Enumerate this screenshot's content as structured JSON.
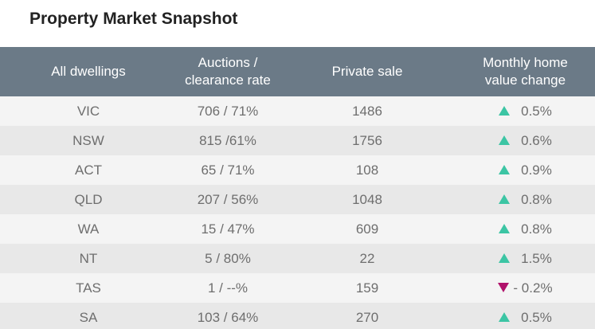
{
  "title": "Property Market Snapshot",
  "colors": {
    "header_bg": "#6b7a87",
    "up_arrow": "#3cc5a4",
    "down_arrow": "#b0126b"
  },
  "headers": {
    "col1": "All dwellings",
    "col2_line1": "Auctions /",
    "col2_line2": "clearance rate",
    "col3": "Private sale",
    "col4_line1": "Monthly home",
    "col4_line2": "value change"
  },
  "rows": [
    {
      "state": "VIC",
      "auctions": "706 / 71%",
      "private_sale": "1486",
      "direction": "up",
      "change": "0.5%"
    },
    {
      "state": "NSW",
      "auctions": "815 /61%",
      "private_sale": "1756",
      "direction": "up",
      "change": "0.6%"
    },
    {
      "state": "ACT",
      "auctions": "65 / 71%",
      "private_sale": "108",
      "direction": "up",
      "change": "0.9%"
    },
    {
      "state": "QLD",
      "auctions": "207 / 56%",
      "private_sale": "1048",
      "direction": "up",
      "change": "0.8%"
    },
    {
      "state": "WA",
      "auctions": "15 / 47%",
      "private_sale": "609",
      "direction": "up",
      "change": "0.8%"
    },
    {
      "state": "NT",
      "auctions": "5 / 80%",
      "private_sale": "22",
      "direction": "up",
      "change": "1.5%"
    },
    {
      "state": "TAS",
      "auctions": "1 / --%",
      "private_sale": "159",
      "direction": "down",
      "change": "- 0.2%"
    },
    {
      "state": "SA",
      "auctions": "103 / 64%",
      "private_sale": "270",
      "direction": "up",
      "change": "0.5%"
    }
  ]
}
